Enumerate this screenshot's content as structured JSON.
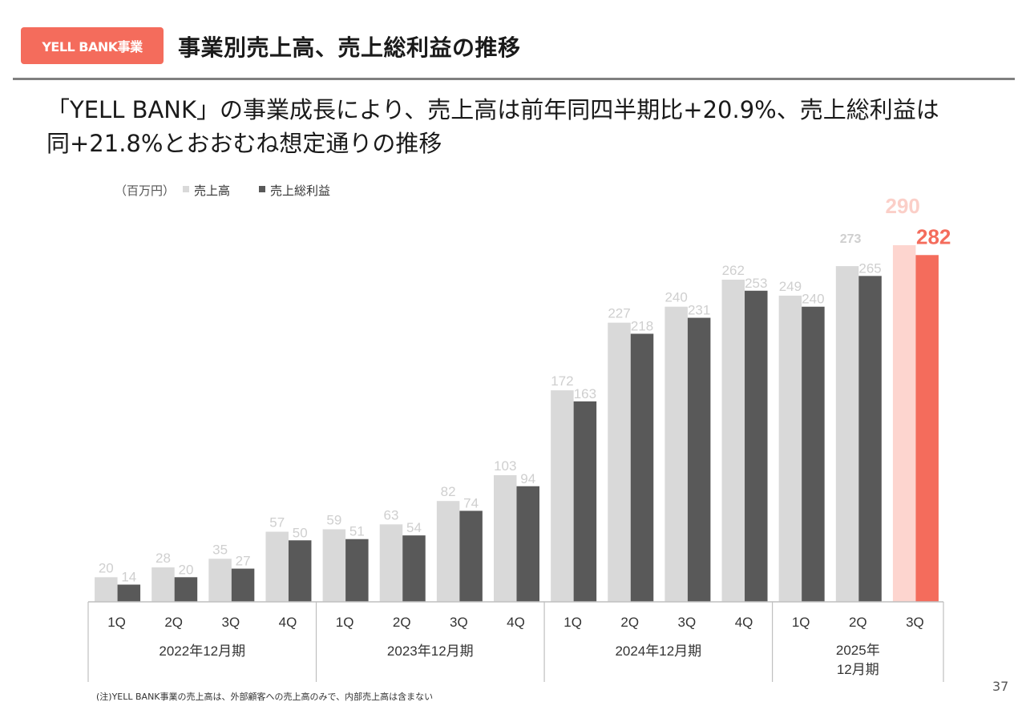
{
  "header": {
    "badge": "YELL BANK事業",
    "title": "事業別売上高、売上総利益の推移"
  },
  "lead": {
    "line1": "「YELL BANK」の事業成長により、売上高は前年同四半期比+20.9%、売上総利益は",
    "line2": "同+21.8%とおおむね想定通りの推移"
  },
  "footnote": "(注)YELL BANK事業の売上高は、外部顧客への売上高のみで、内部売上高は含まない",
  "page_number": "37",
  "colors": {
    "revenue": "#d9d9d9",
    "gross_profit": "#595959",
    "revenue_highlight": "#fdd5cf",
    "gross_profit_highlight": "#f46c5c",
    "label_light": "#cfcfcf",
    "label_highlight_light": "#fbcfc8"
  },
  "chart_data": {
    "type": "bar",
    "unit_label": "（百万円）",
    "categories": [
      "1Q",
      "2Q",
      "3Q",
      "4Q",
      "1Q",
      "2Q",
      "3Q",
      "4Q",
      "1Q",
      "2Q",
      "3Q",
      "4Q",
      "1Q",
      "2Q",
      "3Q"
    ],
    "groups": [
      {
        "label": "2022年12月期",
        "count": 4
      },
      {
        "label": "2023年12月期",
        "count": 4
      },
      {
        "label": "2024年12月期",
        "count": 4
      },
      {
        "label": "2025年\n12月期",
        "count": 3
      }
    ],
    "series": [
      {
        "name": "売上高",
        "values": [
          20,
          28,
          35,
          57,
          59,
          63,
          82,
          103,
          172,
          227,
          240,
          262,
          249,
          273,
          290
        ]
      },
      {
        "name": "売上総利益",
        "values": [
          14,
          20,
          27,
          50,
          51,
          54,
          74,
          94,
          163,
          218,
          231,
          253,
          240,
          265,
          282
        ]
      }
    ],
    "highlight_index": 14,
    "ylim": [
      0,
      300
    ],
    "legend_position": "top-left",
    "grid": false
  }
}
